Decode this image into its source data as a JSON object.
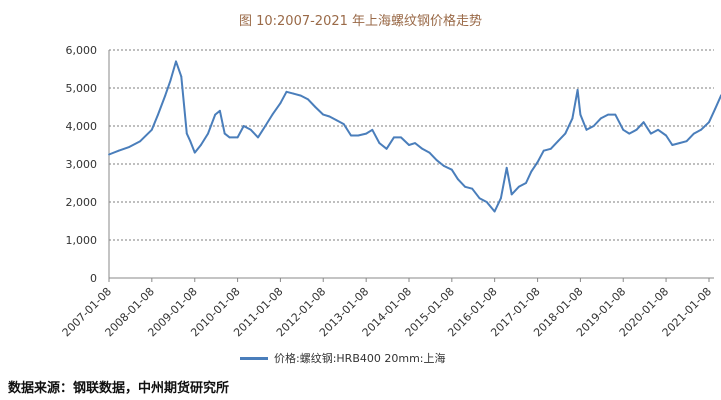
{
  "chart_data": {
    "type": "line",
    "title": "图 10:2007-2021 年上海螺纹钢价格走势",
    "xlabel": "",
    "ylabel": "",
    "ylim": [
      0,
      6000
    ],
    "yticks": [
      0,
      1000,
      2000,
      3000,
      4000,
      5000,
      6000
    ],
    "ytick_labels": [
      "0",
      "1,000",
      "2,000",
      "3,000",
      "4,000",
      "5,000",
      "6,000"
    ],
    "xticks": [
      "2007-01-08",
      "2008-01-08",
      "2009-01-08",
      "2010-01-08",
      "2011-01-08",
      "2012-01-08",
      "2013-01-08",
      "2014-01-08",
      "2015-01-08",
      "2016-01-08",
      "2017-01-08",
      "2018-01-08",
      "2019-01-08",
      "2020-01-08",
      "2021-01-08"
    ],
    "grid": "horizontal-dashed",
    "legend_position": "bottom",
    "series": [
      {
        "name": "价格:螺纹钢:HRB400 20mm:上海",
        "color": "#4a7ebb",
        "x": [
          "2007-01-08",
          "2007-04-01",
          "2007-07-01",
          "2007-10-01",
          "2008-01-08",
          "2008-03-01",
          "2008-05-01",
          "2008-06-15",
          "2008-08-01",
          "2008-09-15",
          "2008-11-01",
          "2008-12-01",
          "2009-01-08",
          "2009-03-01",
          "2009-05-01",
          "2009-07-01",
          "2009-08-10",
          "2009-09-20",
          "2009-11-01",
          "2010-01-08",
          "2010-03-01",
          "2010-05-01",
          "2010-07-01",
          "2010-09-01",
          "2010-11-01",
          "2011-01-08",
          "2011-03-01",
          "2011-05-01",
          "2011-07-01",
          "2011-09-01",
          "2011-11-01",
          "2012-01-08",
          "2012-03-01",
          "2012-05-01",
          "2012-07-01",
          "2012-09-01",
          "2012-11-01",
          "2013-01-08",
          "2013-03-01",
          "2013-05-01",
          "2013-07-01",
          "2013-09-01",
          "2013-11-01",
          "2014-01-08",
          "2014-03-01",
          "2014-05-01",
          "2014-07-01",
          "2014-09-01",
          "2014-11-01",
          "2015-01-08",
          "2015-03-01",
          "2015-05-01",
          "2015-07-01",
          "2015-09-01",
          "2015-11-01",
          "2016-01-08",
          "2016-03-01",
          "2016-04-20",
          "2016-06-01",
          "2016-08-01",
          "2016-10-01",
          "2016-11-15",
          "2017-01-08",
          "2017-03-01",
          "2017-05-01",
          "2017-07-01",
          "2017-09-01",
          "2017-11-01",
          "2017-12-15",
          "2018-01-08",
          "2018-03-01",
          "2018-05-01",
          "2018-07-01",
          "2018-09-01",
          "2018-11-01",
          "2019-01-08",
          "2019-03-01",
          "2019-05-01",
          "2019-07-01",
          "2019-09-01",
          "2019-11-01",
          "2020-01-08",
          "2020-03-01",
          "2020-05-01",
          "2020-07-01",
          "2020-09-01",
          "2020-11-01",
          "2021-01-08",
          "2021-03-01",
          "2021-04-20",
          "2021-05-20",
          "2021-06-20"
        ],
        "values": [
          3250,
          3350,
          3450,
          3600,
          3900,
          4300,
          4800,
          5200,
          5700,
          5300,
          3800,
          3600,
          3300,
          3500,
          3800,
          4300,
          4400,
          3800,
          3700,
          3700,
          4000,
          3900,
          3700,
          4000,
          4300,
          4600,
          4900,
          4850,
          4800,
          4700,
          4500,
          4300,
          4250,
          4150,
          4050,
          3750,
          3750,
          3800,
          3900,
          3550,
          3400,
          3700,
          3700,
          3500,
          3550,
          3400,
          3300,
          3100,
          2950,
          2850,
          2600,
          2400,
          2350,
          2100,
          2000,
          1750,
          2100,
          2900,
          2200,
          2400,
          2500,
          2800,
          3050,
          3350,
          3400,
          3600,
          3800,
          4200,
          4950,
          4300,
          3900,
          4000,
          4200,
          4300,
          4300,
          3900,
          3800,
          3900,
          4100,
          3800,
          3900,
          3750,
          3500,
          3550,
          3600,
          3800,
          3900,
          4100,
          4450,
          4800,
          4900,
          4700
        ]
      }
    ]
  },
  "legend": {
    "label": "价格:螺纹钢:HRB400 20mm:上海"
  },
  "source_note": "数据来源：钢联数据，中州期货研究所"
}
